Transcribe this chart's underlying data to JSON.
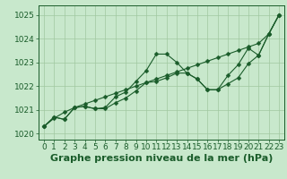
{
  "xlabel": "Graphe pression niveau de la mer (hPa)",
  "x": [
    0,
    1,
    2,
    3,
    4,
    5,
    6,
    7,
    8,
    9,
    10,
    11,
    12,
    13,
    14,
    15,
    16,
    17,
    18,
    19,
    20,
    21,
    22,
    23
  ],
  "line_straight": [
    1020.3,
    1020.65,
    1020.9,
    1021.1,
    1021.25,
    1021.4,
    1021.55,
    1021.7,
    1021.85,
    1022.0,
    1022.15,
    1022.3,
    1022.45,
    1022.6,
    1022.75,
    1022.9,
    1023.05,
    1023.2,
    1023.35,
    1023.5,
    1023.65,
    1023.8,
    1024.2,
    1025.0
  ],
  "line_mid": [
    1020.3,
    1020.7,
    1020.6,
    1021.1,
    1021.15,
    1021.05,
    1021.1,
    1021.55,
    1021.75,
    1022.2,
    1022.65,
    1023.35,
    1023.35,
    1023.0,
    1022.55,
    1022.3,
    1021.85,
    1021.85,
    1022.45,
    1022.9,
    1023.6,
    1023.3,
    1024.2,
    1025.0
  ],
  "line_low": [
    1020.3,
    1020.7,
    1020.6,
    1021.1,
    1021.15,
    1021.05,
    1021.05,
    1021.3,
    1021.5,
    1021.8,
    1022.15,
    1022.2,
    1022.35,
    1022.55,
    1022.55,
    1022.3,
    1021.85,
    1021.85,
    1022.1,
    1022.35,
    1022.95,
    1023.3,
    1024.2,
    1025.0
  ],
  "ylim_min": 1019.75,
  "ylim_max": 1025.4,
  "yticks": [
    1020,
    1021,
    1022,
    1023,
    1024,
    1025
  ],
  "bg_color": "#c8e8cc",
  "line_color": "#1a5c2a",
  "grid_color": "#a0c8a0",
  "xlabel_fontsize": 8,
  "tick_fontsize": 6.5
}
